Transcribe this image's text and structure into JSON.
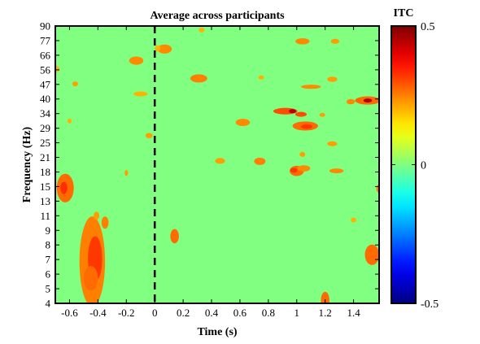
{
  "chart_data": {
    "type": "heatmap",
    "title": "Average across participants",
    "xlabel": "Time (s)",
    "ylabel": "Frequency (Hz)",
    "x_ticks": [
      -0.6,
      -0.4,
      -0.2,
      0,
      0.2,
      0.4,
      0.6,
      0.8,
      1,
      1.2,
      1.4
    ],
    "x_tick_labels": [
      "-0.6",
      "-0.4",
      "-0.2",
      "0",
      "0.2",
      "0.4",
      "0.6",
      "0.8",
      "1",
      "1.2",
      "1.4"
    ],
    "xlim": [
      -0.7,
      1.58
    ],
    "y_tick_labels": [
      "90",
      "77",
      "66",
      "56",
      "47",
      "40",
      "34",
      "29",
      "25",
      "21",
      "18",
      "15",
      "13",
      "11",
      "9",
      "8",
      "7",
      "6",
      "5",
      "4"
    ],
    "y_scale": "log",
    "event_line_x": 0,
    "event_line_style": "dashed",
    "colorbar": {
      "title": "ITC",
      "range": [
        -0.5,
        0.5
      ],
      "tick_labels": [
        "0.5",
        "0",
        "-0.5"
      ],
      "colormap": "jet"
    },
    "background_value": 0,
    "blobs": [
      {
        "x": -0.63,
        "f": 14.6,
        "w": 0.06,
        "h": 0.07,
        "v": 0.27
      },
      {
        "x": -0.64,
        "f": 14.6,
        "w": 0.025,
        "h": 0.03,
        "v": 0.33
      },
      {
        "x": -0.44,
        "f": 6.4,
        "w": 0.09,
        "h": 0.22,
        "v": 0.25
      },
      {
        "x": -0.42,
        "f": 6.6,
        "w": 0.05,
        "h": 0.11,
        "v": 0.32
      },
      {
        "x": -0.45,
        "f": 5.3,
        "w": 0.05,
        "h": 0.06,
        "v": 0.27
      },
      {
        "x": -0.35,
        "f": 9.9,
        "w": 0.025,
        "h": 0.03,
        "v": 0.25
      },
      {
        "x": -0.41,
        "f": 10.7,
        "w": 0.02,
        "h": 0.02,
        "v": 0.22
      },
      {
        "x": -0.2,
        "f": 17.3,
        "w": 0.012,
        "h": 0.015,
        "v": 0.22
      },
      {
        "x": -0.13,
        "f": 61,
        "w": 0.05,
        "h": 0.02,
        "v": 0.24
      },
      {
        "x": -0.71,
        "f": 55.5,
        "w": 0.04,
        "h": 0.018,
        "v": 0.2
      },
      {
        "x": -0.56,
        "f": 47,
        "w": 0.02,
        "h": 0.012,
        "v": 0.22
      },
      {
        "x": -0.6,
        "f": 31,
        "w": 0.015,
        "h": 0.012,
        "v": 0.2
      },
      {
        "x": -0.1,
        "f": 42,
        "w": 0.05,
        "h": 0.012,
        "v": 0.2
      },
      {
        "x": -0.04,
        "f": 26.3,
        "w": 0.025,
        "h": 0.013,
        "v": 0.22
      },
      {
        "x": 0.07,
        "f": 69.5,
        "w": 0.05,
        "h": 0.022,
        "v": 0.24
      },
      {
        "x": 0.02,
        "f": 70,
        "w": 0.02,
        "h": 0.015,
        "v": 0.2
      },
      {
        "x": 0.14,
        "f": 8.5,
        "w": 0.03,
        "h": 0.035,
        "v": 0.27
      },
      {
        "x": 0.31,
        "f": 50,
        "w": 0.06,
        "h": 0.02,
        "v": 0.25
      },
      {
        "x": 0.46,
        "f": 19.8,
        "w": 0.035,
        "h": 0.014,
        "v": 0.22
      },
      {
        "x": 0.62,
        "f": 30.5,
        "w": 0.05,
        "h": 0.018,
        "v": 0.24
      },
      {
        "x": 0.74,
        "f": 19.7,
        "w": 0.04,
        "h": 0.018,
        "v": 0.25
      },
      {
        "x": 0.75,
        "f": 50.5,
        "w": 0.02,
        "h": 0.01,
        "v": 0.2
      },
      {
        "x": 0.92,
        "f": 34.6,
        "w": 0.085,
        "h": 0.016,
        "v": 0.3
      },
      {
        "x": 0.97,
        "f": 34.6,
        "w": 0.025,
        "h": 0.01,
        "v": 0.45
      },
      {
        "x": 1.03,
        "f": 33.4,
        "w": 0.04,
        "h": 0.012,
        "v": 0.3
      },
      {
        "x": 1.06,
        "f": 29.3,
        "w": 0.09,
        "h": 0.022,
        "v": 0.27
      },
      {
        "x": 1.07,
        "f": 29.1,
        "w": 0.04,
        "h": 0.012,
        "v": 0.32
      },
      {
        "x": 1.18,
        "f": 33.2,
        "w": 0.02,
        "h": 0.01,
        "v": 0.22
      },
      {
        "x": 1.04,
        "f": 21.3,
        "w": 0.02,
        "h": 0.012,
        "v": 0.22
      },
      {
        "x": 1.0,
        "f": 17.7,
        "w": 0.05,
        "h": 0.025,
        "v": 0.27
      },
      {
        "x": 0.98,
        "f": 17.8,
        "w": 0.025,
        "h": 0.012,
        "v": 0.32
      },
      {
        "x": 1.05,
        "f": 18.2,
        "w": 0.045,
        "h": 0.015,
        "v": 0.24
      },
      {
        "x": 1.28,
        "f": 17.7,
        "w": 0.05,
        "h": 0.012,
        "v": 0.24
      },
      {
        "x": 1.25,
        "f": 24.0,
        "w": 0.035,
        "h": 0.012,
        "v": 0.22
      },
      {
        "x": 1.04,
        "f": 75.8,
        "w": 0.05,
        "h": 0.015,
        "v": 0.24
      },
      {
        "x": 1.27,
        "f": 75.8,
        "w": 0.03,
        "h": 0.012,
        "v": 0.22
      },
      {
        "x": 1.1,
        "f": 45.5,
        "w": 0.07,
        "h": 0.01,
        "v": 0.24
      },
      {
        "x": 1.25,
        "f": 49.5,
        "w": 0.035,
        "h": 0.013,
        "v": 0.22
      },
      {
        "x": 1.5,
        "f": 39.0,
        "w": 0.09,
        "h": 0.02,
        "v": 0.27
      },
      {
        "x": 1.5,
        "f": 39.0,
        "w": 0.03,
        "h": 0.01,
        "v": 0.45
      },
      {
        "x": 1.38,
        "f": 38.5,
        "w": 0.03,
        "h": 0.013,
        "v": 0.24
      },
      {
        "x": 1.53,
        "f": 6.9,
        "w": 0.05,
        "h": 0.05,
        "v": 0.27
      },
      {
        "x": 1.58,
        "f": 14.5,
        "w": 0.02,
        "h": 0.02,
        "v": 0.25
      },
      {
        "x": 1.4,
        "f": 10.2,
        "w": 0.02,
        "h": 0.012,
        "v": 0.2
      },
      {
        "x": 1.2,
        "f": 4.15,
        "w": 0.03,
        "h": 0.04,
        "v": 0.27
      },
      {
        "x": 0.33,
        "f": 86.0,
        "w": 0.02,
        "h": 0.012,
        "v": 0.2
      }
    ]
  }
}
